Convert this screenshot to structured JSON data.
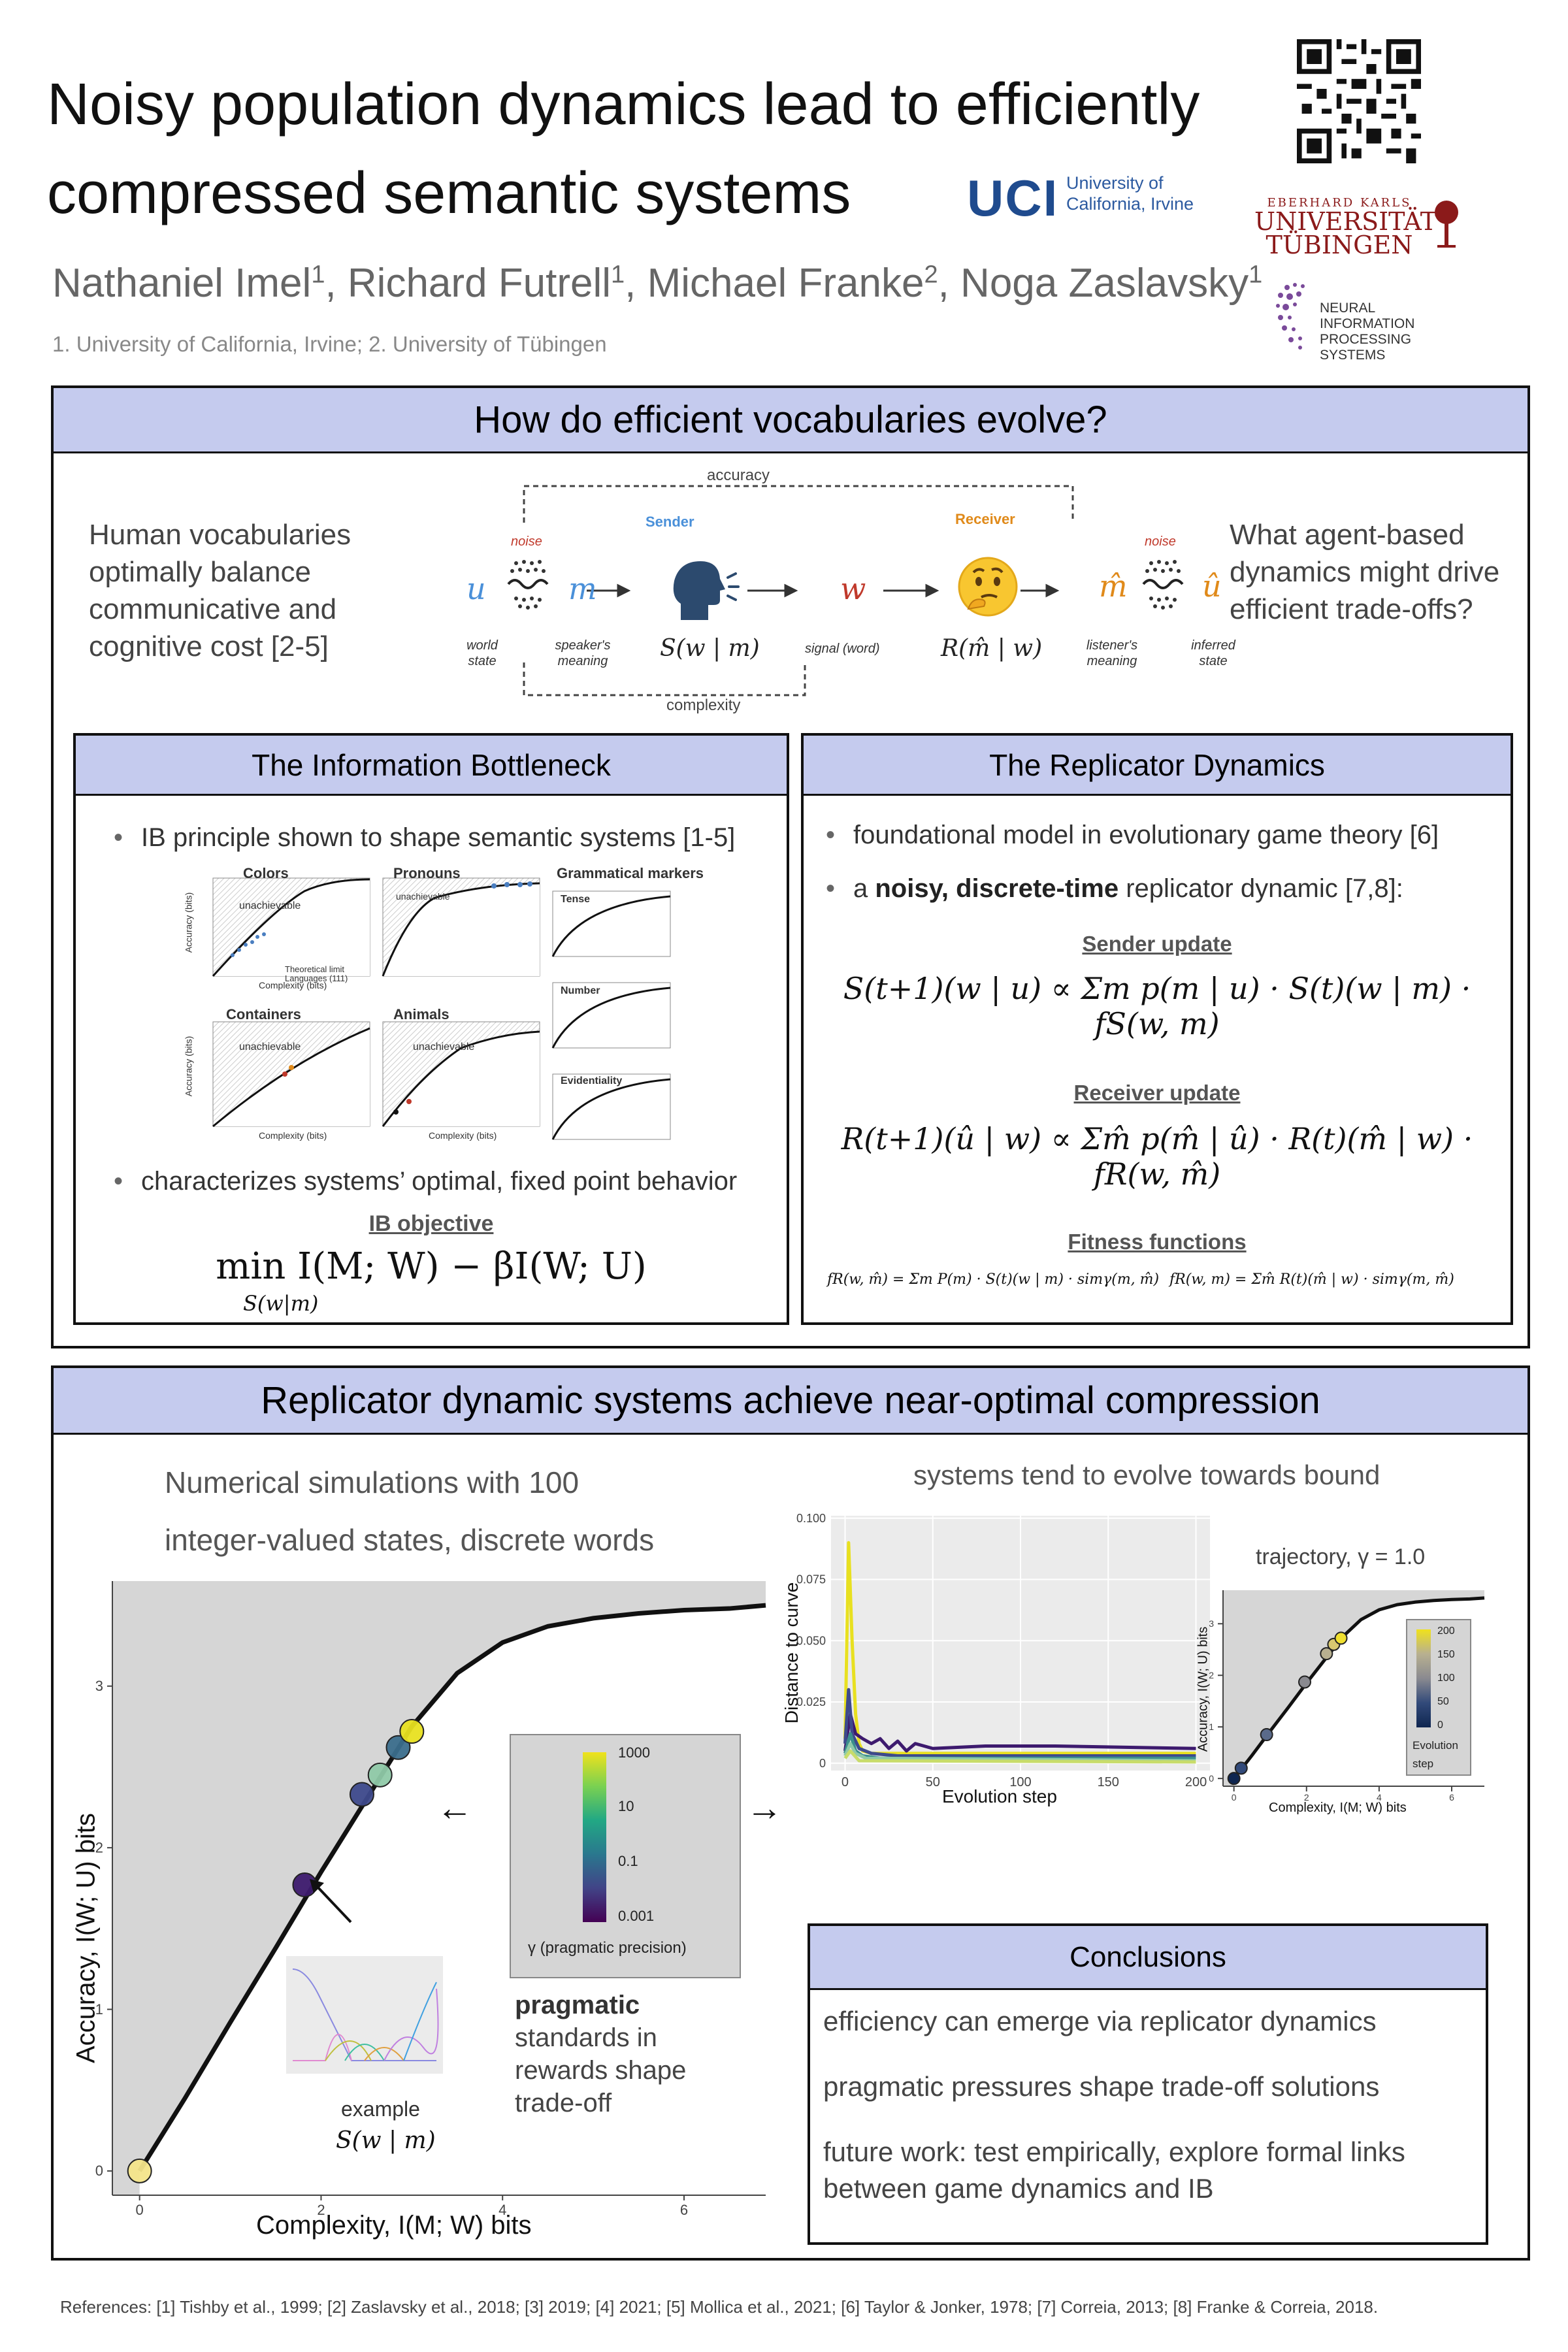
{
  "header": {
    "title_line1": "Noisy population dynamics lead to efficiently",
    "title_line2": "compressed semantic systems",
    "authors": [
      {
        "name": "Nathaniel Imel",
        "sup": "1"
      },
      {
        "name": "Richard Futrell",
        "sup": "1"
      },
      {
        "name": "Michael Franke",
        "sup": "2"
      },
      {
        "name": "Noga Zaslavsky",
        "sup": "1"
      }
    ],
    "affiliations": "1. University of California, Irvine; 2. University of Tübingen",
    "logos": {
      "uci_mark": "UCI",
      "uci_text_line1": "University of",
      "uci_text_line2": "California, Irvine",
      "tub_line1": "EBERHARD KARLS",
      "tub_line2": "UNIVERSITÄT",
      "tub_line3": "TÜBINGEN",
      "nips_line1": "NEURAL INFORMATION",
      "nips_line2": "PROCESSING SYSTEMS"
    }
  },
  "section1": {
    "heading": "How do efficient vocabularies evolve?",
    "left_text": "Human vocabularies optimally balance communicative and cognitive cost [2-5]",
    "right_text": "What agent-based dynamics might drive efficient trade-offs?",
    "diagram": {
      "accuracy": "accuracy",
      "complexity": "complexity",
      "sender": "Sender",
      "receiver": "Receiver",
      "noise": "noise",
      "u": "u",
      "m": "m",
      "w": "w",
      "mhat": "m̂",
      "uhat": "û",
      "world_state": "world state",
      "speakers_meaning": "speaker's meaning",
      "signal": "signal (word)",
      "listeners_meaning": "listener's meaning",
      "inferred_state": "inferred state",
      "S": "S(w | m)",
      "R": "R(m̂ | w)"
    }
  },
  "ib": {
    "heading": "The Information Bottleneck",
    "bullet1": "IB principle shown to shape semantic systems [1-5]",
    "bullet2": "characterizes systems’ optimal, fixed point behavior",
    "objective_label": "IB objective",
    "objective": "min I(M; W) − βI(W; U)",
    "objective_sub": "S(w|m)",
    "panels": {
      "colors": "Colors",
      "pronouns": "Pronouns",
      "grammatical": "Grammatical markers",
      "containers": "Containers",
      "animals": "Animals",
      "tense": "Tense",
      "number": "Number",
      "evidentiality": "Evidentiality",
      "unachievable": "unachievable",
      "xlabel": "Complexity (bits)",
      "ylabel": "Accuracy (bits)",
      "legend_limit": "Theoretical limit",
      "legend_lang": "Languages (111)"
    }
  },
  "rd": {
    "heading": "The Replicator Dynamics",
    "bullet1": "foundational model in evolutionary game theory [6]",
    "bullet2_pre": "a ",
    "bullet2_bold": "noisy, discrete-time",
    "bullet2_post": " replicator dynamic [7,8]:",
    "sender_label": "Sender update",
    "sender_eq": "S(t+1)(w | u) ∝ Σm p(m | u) · S(t)(w | m) · fS(w, m)",
    "receiver_label": "Receiver update",
    "receiver_eq": "R(t+1)(û | w) ∝ Σm̂ p(m̂ | û) · R(t)(m̂ | w) · fR(w, m̂)",
    "fitness_label": "Fitness functions",
    "fitness_eq1": "fR(w, m̂) = Σm P(m) · S(t)(w | m) · simγ(m, m̂)",
    "fitness_eq2": "fR(w, m) = Σm̂ R(t)(m̂ | w) · simγ(m, m̂)"
  },
  "section2": {
    "heading": "Replicator dynamic systems achieve near-optimal compression",
    "sim_text1": "Numerical simulations with 100",
    "sim_text2": "integer-valued states, discrete words",
    "tend_text": "systems tend to evolve towards bound",
    "pragmatic_bold": "pragmatic",
    "pragmatic_rest": "standards in rewards shape trade-off",
    "example_label": "example",
    "example_math": "S(w | m)",
    "colorbar_title": "γ (pragmatic precision)",
    "colorbar_ticks": [
      "1000",
      "10",
      "0.1",
      "0.001"
    ],
    "traj_title": "trajectory, γ = 1.0",
    "traj_colorbar_ticks": [
      "200",
      "150",
      "100",
      "50",
      "0"
    ],
    "traj_colorbar_label": "Evolution step",
    "arrow_left": "←",
    "arrow_right": "→"
  },
  "conclusions": {
    "heading": "Conclusions",
    "items": [
      "efficiency can emerge via replicator dynamics",
      "pragmatic pressures shape trade-off solutions",
      "future work: test empirically, explore formal links between game dynamics and IB"
    ]
  },
  "references": "References: [1] Tishby et al., 1999; [2] Zaslavsky et al., 2018; [3] 2019; [4] 2021; [5] Mollica et al., 2021; [6] Taylor & Jonker, 1978; [7] Correia, 2013; [8] Franke & Correia, 2018.",
  "chart_data": [
    {
      "type": "scatter",
      "title": "",
      "xlabel": "Complexity, I(M; W) bits",
      "ylabel": "Accuracy, I(W; U) bits",
      "xlim": [
        -0.3,
        6.9
      ],
      "ylim": [
        -0.15,
        3.65
      ],
      "x_ticks": [
        0,
        2,
        4,
        6
      ],
      "y_ticks": [
        0,
        1,
        2,
        3
      ],
      "bound": {
        "x": [
          0,
          0.5,
          1.0,
          1.5,
          2.0,
          2.5,
          3.0,
          3.5,
          4.0,
          4.5,
          5.0,
          5.5,
          6.0,
          6.5,
          6.9
        ],
        "y": [
          0,
          0.45,
          0.92,
          1.38,
          1.85,
          2.3,
          2.75,
          3.08,
          3.27,
          3.37,
          3.42,
          3.45,
          3.47,
          3.48,
          3.5
        ]
      },
      "points": [
        {
          "x": 0.0,
          "y": 0.0,
          "color": "#f4e58a"
        },
        {
          "x": 1.82,
          "y": 1.77,
          "color": "#3d1a6e"
        },
        {
          "x": 2.45,
          "y": 2.33,
          "color": "#3e4a8c"
        },
        {
          "x": 2.65,
          "y": 2.45,
          "color": "#8fc9a8"
        },
        {
          "x": 2.85,
          "y": 2.62,
          "color": "#3b6e8c"
        },
        {
          "x": 3.0,
          "y": 2.72,
          "color": "#e8e020"
        }
      ],
      "grid": false
    },
    {
      "type": "line",
      "title": "",
      "xlabel": "Evolution step",
      "ylabel": "Distance to curve",
      "xlim": [
        -8,
        208
      ],
      "ylim": [
        -0.003,
        0.101
      ],
      "x_ticks": [
        0,
        50,
        100,
        150,
        200
      ],
      "y_ticks": [
        0,
        0.025,
        0.05,
        0.075,
        0.1
      ],
      "y_tick_labels": [
        "0",
        "0.025",
        "0.050",
        "0.075",
        "0.100"
      ],
      "grid": true,
      "series": [
        {
          "color": "#e8e020",
          "x": [
            0,
            2,
            4,
            6,
            8,
            10,
            15,
            20,
            40,
            80,
            200
          ],
          "y": [
            0.01,
            0.09,
            0.05,
            0.02,
            0.008,
            0.005,
            0.004,
            0.004,
            0.004,
            0.004,
            0.004
          ]
        },
        {
          "color": "#3d1a6e",
          "x": [
            0,
            3,
            6,
            10,
            15,
            20,
            25,
            30,
            35,
            40,
            50,
            80,
            120,
            200
          ],
          "y": [
            0.005,
            0.02,
            0.012,
            0.01,
            0.008,
            0.01,
            0.006,
            0.009,
            0.005,
            0.008,
            0.006,
            0.007,
            0.007,
            0.006
          ]
        },
        {
          "color": "#3e4a8c",
          "x": [
            0,
            2,
            4,
            8,
            15,
            30,
            200
          ],
          "y": [
            0.008,
            0.03,
            0.012,
            0.006,
            0.004,
            0.003,
            0.003
          ]
        },
        {
          "color": "#3b8e8c",
          "x": [
            0,
            3,
            6,
            10,
            20,
            200
          ],
          "y": [
            0.004,
            0.012,
            0.005,
            0.003,
            0.002,
            0.002
          ]
        },
        {
          "color": "#8fc9a8",
          "x": [
            0,
            3,
            6,
            12,
            200
          ],
          "y": [
            0.003,
            0.008,
            0.004,
            0.002,
            0.001
          ]
        },
        {
          "color": "#c8dc6a",
          "x": [
            0,
            3,
            8,
            200
          ],
          "y": [
            0.002,
            0.005,
            0.001,
            0.0005
          ]
        }
      ]
    },
    {
      "type": "scatter",
      "title": "trajectory, γ = 1.0",
      "xlabel": "Complexity, I(M; W) bits",
      "ylabel": "Accuracy, I(W; U) bits",
      "xlim": [
        -0.3,
        6.9
      ],
      "ylim": [
        -0.15,
        3.65
      ],
      "x_ticks": [
        0,
        2,
        4,
        6
      ],
      "y_ticks": [
        0,
        1,
        2,
        3
      ],
      "bound": {
        "x": [
          0,
          0.5,
          1.0,
          1.5,
          2.0,
          2.5,
          3.0,
          3.5,
          4.0,
          4.5,
          5.0,
          5.5,
          6.0,
          6.5,
          6.9
        ],
        "y": [
          0,
          0.45,
          0.92,
          1.38,
          1.85,
          2.3,
          2.75,
          3.08,
          3.27,
          3.37,
          3.42,
          3.45,
          3.47,
          3.48,
          3.5
        ]
      },
      "points": [
        {
          "x": 0.0,
          "y": 0.0,
          "color": "#0f2650"
        },
        {
          "x": 0.2,
          "y": 0.2,
          "color": "#324a7a"
        },
        {
          "x": 0.9,
          "y": 0.85,
          "color": "#5a6a8a"
        },
        {
          "x": 1.95,
          "y": 1.87,
          "color": "#8a8a90"
        },
        {
          "x": 2.55,
          "y": 2.42,
          "color": "#b8b090"
        },
        {
          "x": 2.75,
          "y": 2.6,
          "color": "#d8c870"
        },
        {
          "x": 2.95,
          "y": 2.72,
          "color": "#f0e030"
        }
      ],
      "grid": false
    }
  ]
}
